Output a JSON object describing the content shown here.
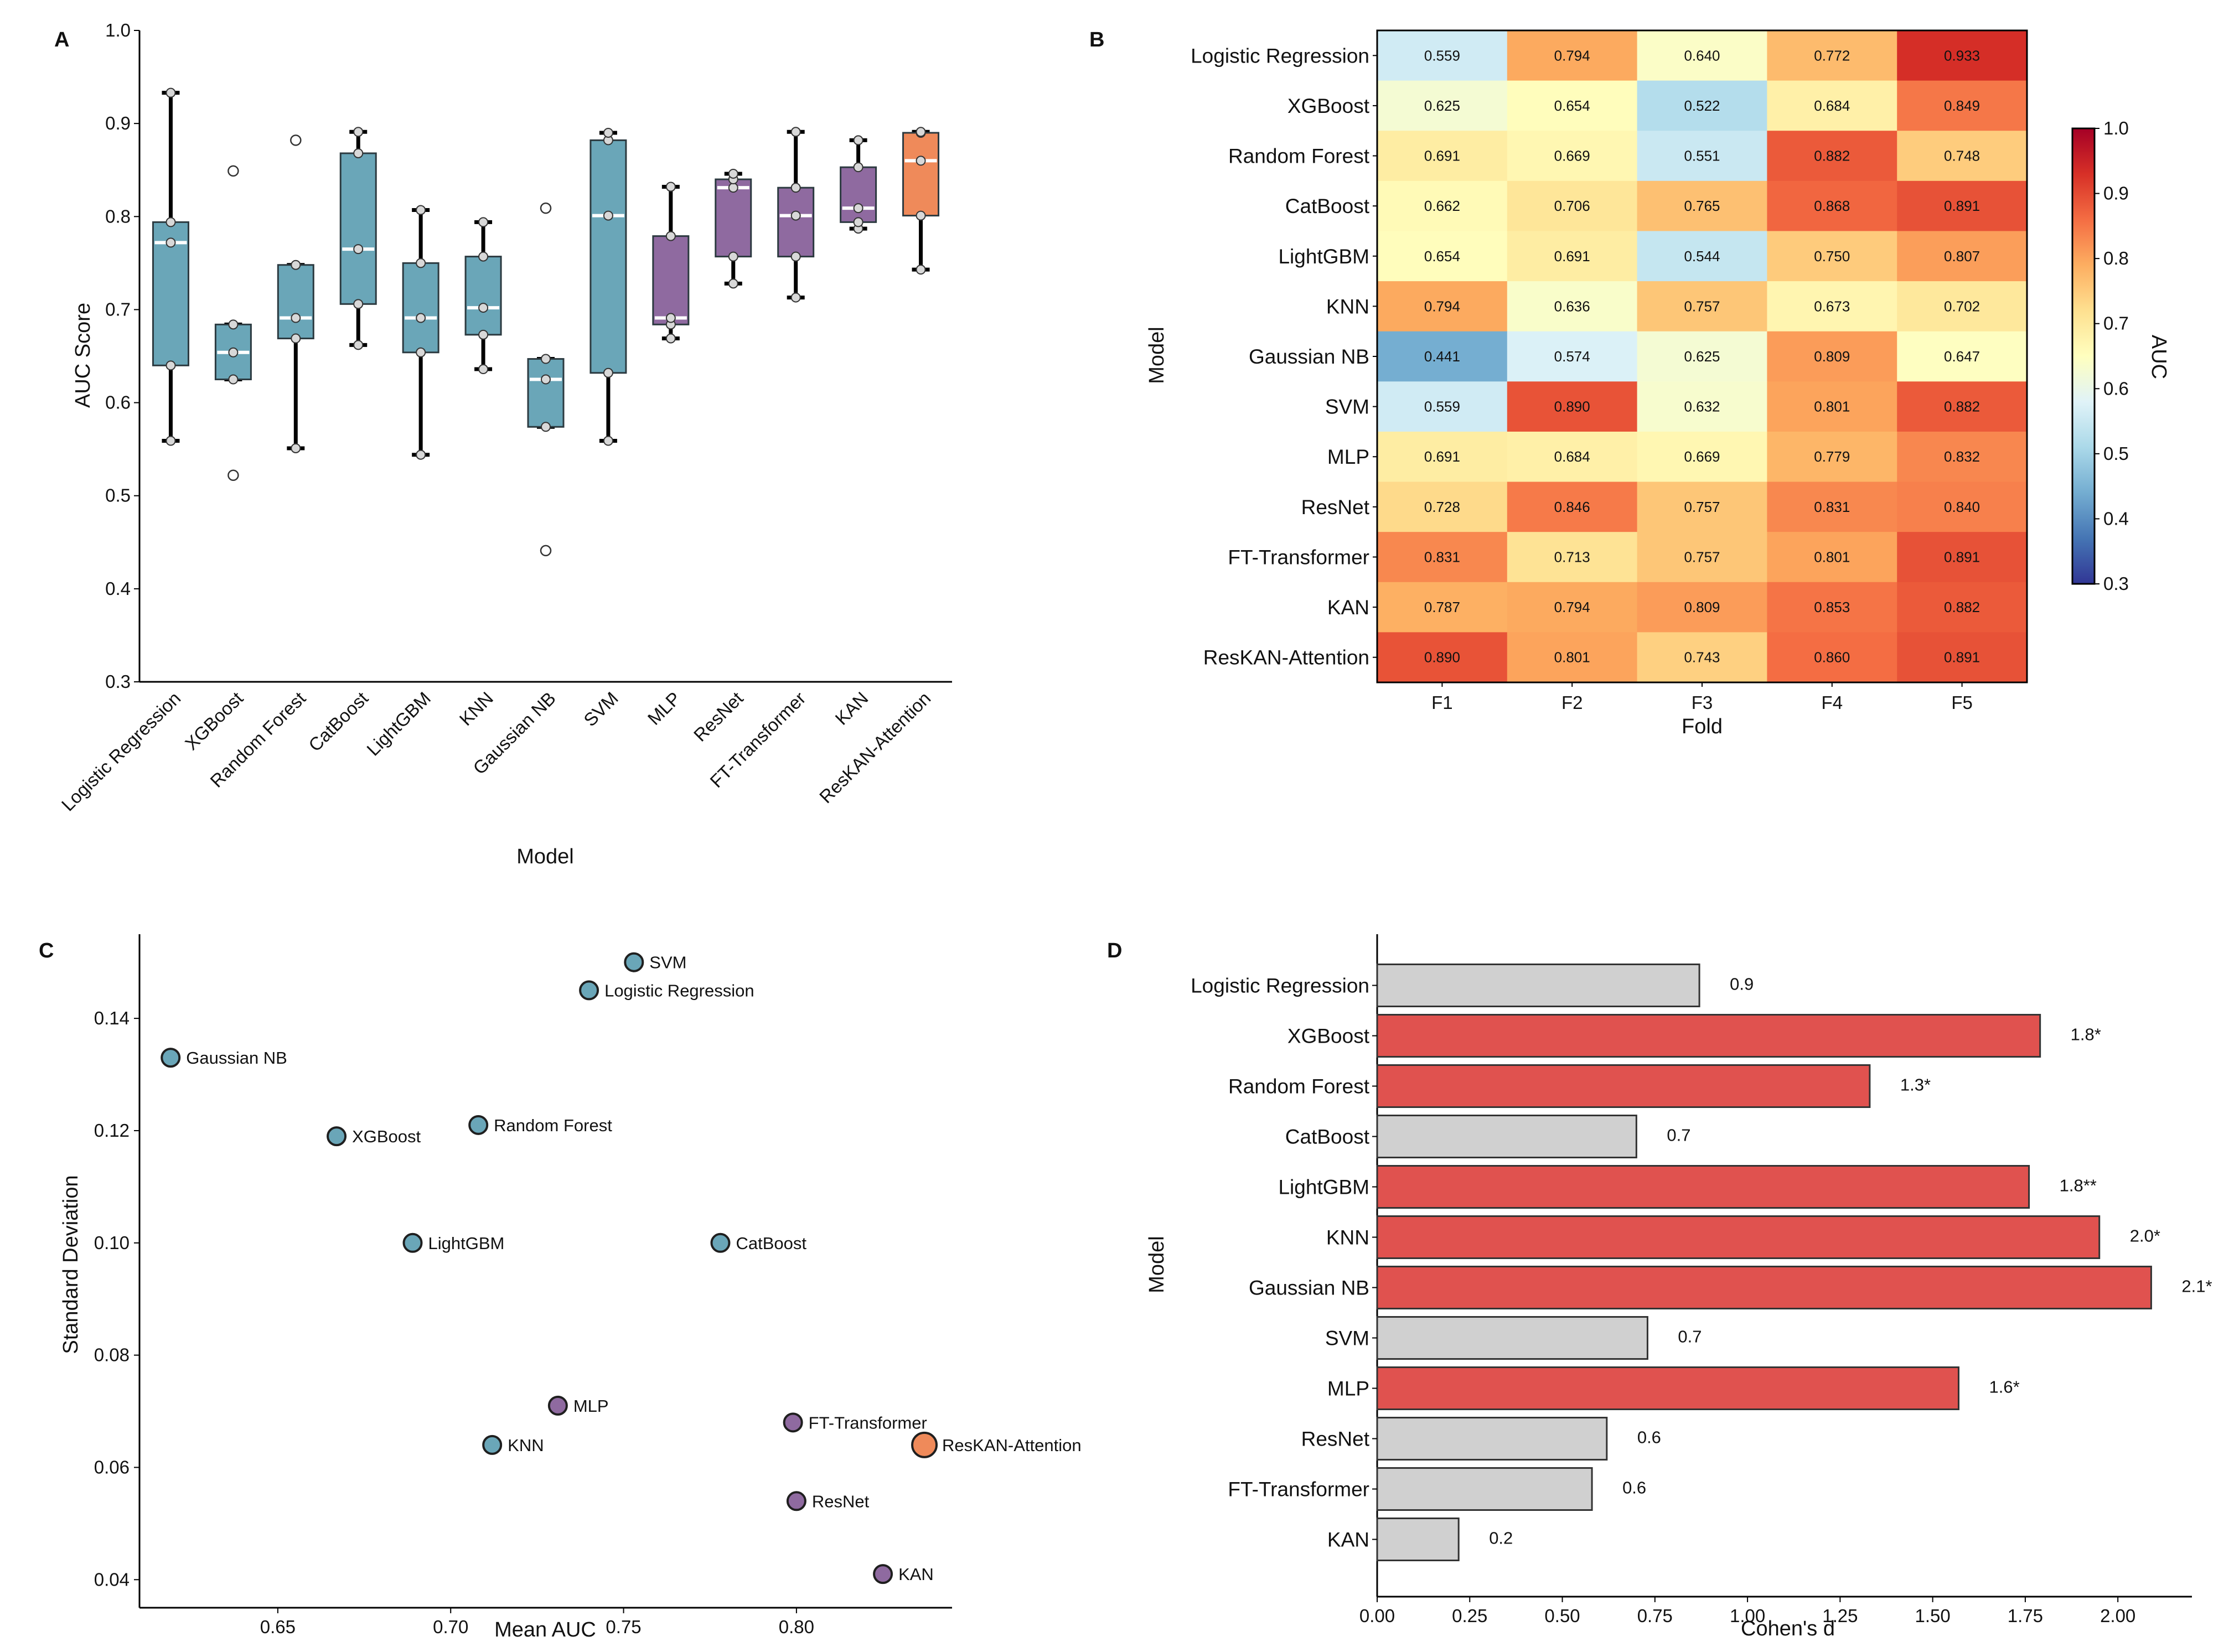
{
  "colors": {
    "blue_box": "#6aa6b8",
    "purple_box": "#8f6aa0",
    "orange_box": "#ef8a5a",
    "red_bar": "#e0524f",
    "grey_bar": "#d0d0d0"
  },
  "chart_data": [
    {
      "panel": "A",
      "type": "box",
      "xlabel": "Model",
      "ylabel": "AUC Score",
      "ylim": [
        0.3,
        1.0
      ],
      "yticks": [
        "0.3",
        "0.4",
        "0.5",
        "0.6",
        "0.7",
        "0.8",
        "0.9",
        "1.0"
      ],
      "series": [
        {
          "name": "Logistic Regression",
          "group": "blue",
          "q1": 0.64,
          "median": 0.772,
          "q3": 0.794,
          "whisker_low": 0.559,
          "whisker_high": 0.933,
          "points": [
            0.559,
            0.64,
            0.772,
            0.794,
            0.933
          ],
          "outliers": []
        },
        {
          "name": "XGBoost",
          "group": "blue",
          "q1": 0.625,
          "median": 0.654,
          "q3": 0.684,
          "whisker_low": 0.625,
          "whisker_high": 0.684,
          "points": [
            0.625,
            0.654,
            0.684
          ],
          "outliers": [
            0.849,
            0.522
          ]
        },
        {
          "name": "Random Forest",
          "group": "blue",
          "q1": 0.669,
          "median": 0.691,
          "q3": 0.748,
          "whisker_low": 0.551,
          "whisker_high": 0.748,
          "points": [
            0.551,
            0.669,
            0.691,
            0.748
          ],
          "outliers": [
            0.882
          ]
        },
        {
          "name": "CatBoost",
          "group": "blue",
          "q1": 0.706,
          "median": 0.765,
          "q3": 0.868,
          "whisker_low": 0.662,
          "whisker_high": 0.891,
          "points": [
            0.662,
            0.706,
            0.765,
            0.868,
            0.891
          ],
          "outliers": []
        },
        {
          "name": "LightGBM",
          "group": "blue",
          "q1": 0.654,
          "median": 0.691,
          "q3": 0.75,
          "whisker_low": 0.544,
          "whisker_high": 0.807,
          "points": [
            0.544,
            0.654,
            0.691,
            0.75,
            0.807
          ],
          "outliers": []
        },
        {
          "name": "KNN",
          "group": "blue",
          "q1": 0.673,
          "median": 0.702,
          "q3": 0.757,
          "whisker_low": 0.636,
          "whisker_high": 0.794,
          "points": [
            0.636,
            0.673,
            0.702,
            0.757,
            0.794
          ],
          "outliers": []
        },
        {
          "name": "Gaussian NB",
          "group": "blue",
          "q1": 0.574,
          "median": 0.625,
          "q3": 0.647,
          "whisker_low": 0.574,
          "whisker_high": 0.647,
          "points": [
            0.574,
            0.625,
            0.647
          ],
          "outliers": [
            0.809,
            0.441
          ]
        },
        {
          "name": "SVM",
          "group": "blue",
          "q1": 0.632,
          "median": 0.801,
          "q3": 0.882,
          "whisker_low": 0.559,
          "whisker_high": 0.89,
          "points": [
            0.559,
            0.632,
            0.801,
            0.882,
            0.89
          ],
          "outliers": []
        },
        {
          "name": "MLP",
          "group": "purple",
          "q1": 0.684,
          "median": 0.691,
          "q3": 0.779,
          "whisker_low": 0.669,
          "whisker_high": 0.832,
          "points": [
            0.669,
            0.684,
            0.691,
            0.779,
            0.832
          ],
          "outliers": []
        },
        {
          "name": "ResNet",
          "group": "purple",
          "q1": 0.757,
          "median": 0.831,
          "q3": 0.84,
          "whisker_low": 0.728,
          "whisker_high": 0.846,
          "points": [
            0.728,
            0.757,
            0.831,
            0.84,
            0.846
          ],
          "outliers": []
        },
        {
          "name": "FT-Transformer",
          "group": "purple",
          "q1": 0.757,
          "median": 0.801,
          "q3": 0.831,
          "whisker_low": 0.713,
          "whisker_high": 0.891,
          "points": [
            0.713,
            0.757,
            0.801,
            0.831,
            0.891
          ],
          "outliers": []
        },
        {
          "name": "KAN",
          "group": "purple",
          "q1": 0.794,
          "median": 0.809,
          "q3": 0.853,
          "whisker_low": 0.787,
          "whisker_high": 0.882,
          "points": [
            0.787,
            0.794,
            0.809,
            0.853,
            0.882
          ],
          "outliers": []
        },
        {
          "name": "ResKAN-Attention",
          "group": "orange",
          "q1": 0.801,
          "median": 0.86,
          "q3": 0.89,
          "whisker_low": 0.743,
          "whisker_high": 0.891,
          "points": [
            0.743,
            0.801,
            0.86,
            0.89,
            0.891
          ],
          "outliers": []
        }
      ]
    },
    {
      "panel": "B",
      "type": "heatmap",
      "xlabel": "Fold",
      "ylabel": "Model",
      "colorbar_label": "AUC",
      "color_range": [
        0.3,
        1.0
      ],
      "colorbar_ticks": [
        "0.3",
        "0.4",
        "0.5",
        "0.6",
        "0.7",
        "0.8",
        "0.9",
        "1.0"
      ],
      "columns": [
        "F1",
        "F2",
        "F3",
        "F4",
        "F5"
      ],
      "rows": [
        "Logistic Regression",
        "XGBoost",
        "Random Forest",
        "CatBoost",
        "LightGBM",
        "KNN",
        "Gaussian NB",
        "SVM",
        "MLP",
        "ResNet",
        "FT-Transformer",
        "KAN",
        "ResKAN-Attention"
      ],
      "values": [
        [
          "0.559",
          "0.794",
          "0.640",
          "0.772",
          "0.933"
        ],
        [
          "0.625",
          "0.654",
          "0.522",
          "0.684",
          "0.849"
        ],
        [
          "0.691",
          "0.669",
          "0.551",
          "0.882",
          "0.748"
        ],
        [
          "0.662",
          "0.706",
          "0.765",
          "0.868",
          "0.891"
        ],
        [
          "0.654",
          "0.691",
          "0.544",
          "0.750",
          "0.807"
        ],
        [
          "0.794",
          "0.636",
          "0.757",
          "0.673",
          "0.702"
        ],
        [
          "0.441",
          "0.574",
          "0.625",
          "0.809",
          "0.647"
        ],
        [
          "0.559",
          "0.890",
          "0.632",
          "0.801",
          "0.882"
        ],
        [
          "0.691",
          "0.684",
          "0.669",
          "0.779",
          "0.832"
        ],
        [
          "0.728",
          "0.846",
          "0.757",
          "0.831",
          "0.840"
        ],
        [
          "0.831",
          "0.713",
          "0.757",
          "0.801",
          "0.891"
        ],
        [
          "0.787",
          "0.794",
          "0.809",
          "0.853",
          "0.882"
        ],
        [
          "0.890",
          "0.801",
          "0.743",
          "0.860",
          "0.891"
        ]
      ]
    },
    {
      "panel": "C",
      "type": "scatter",
      "xlabel": "Mean AUC",
      "ylabel": "Standard Deviation",
      "xlim": [
        0.61,
        0.845
      ],
      "ylim": [
        0.035,
        0.155
      ],
      "xticks": [
        "0.65",
        "0.70",
        "0.75",
        "0.80"
      ],
      "yticks": [
        "0.04",
        "0.06",
        "0.08",
        "0.10",
        "0.12",
        "0.14"
      ],
      "points": [
        {
          "name": "SVM",
          "x": 0.753,
          "y": 0.15,
          "group": "blue"
        },
        {
          "name": "Logistic Regression",
          "x": 0.74,
          "y": 0.145,
          "group": "blue"
        },
        {
          "name": "Gaussian NB",
          "x": 0.619,
          "y": 0.133,
          "group": "blue"
        },
        {
          "name": "Random Forest",
          "x": 0.708,
          "y": 0.121,
          "group": "blue"
        },
        {
          "name": "XGBoost",
          "x": 0.667,
          "y": 0.119,
          "group": "blue"
        },
        {
          "name": "LightGBM",
          "x": 0.689,
          "y": 0.1,
          "group": "blue"
        },
        {
          "name": "CatBoost",
          "x": 0.778,
          "y": 0.1,
          "group": "blue"
        },
        {
          "name": "MLP",
          "x": 0.731,
          "y": 0.071,
          "group": "purple"
        },
        {
          "name": "FT-Transformer",
          "x": 0.799,
          "y": 0.068,
          "group": "purple"
        },
        {
          "name": "ResKAN-Attention",
          "x": 0.837,
          "y": 0.064,
          "group": "orange"
        },
        {
          "name": "KNN",
          "x": 0.712,
          "y": 0.064,
          "group": "blue"
        },
        {
          "name": "ResNet",
          "x": 0.8,
          "y": 0.054,
          "group": "purple"
        },
        {
          "name": "KAN",
          "x": 0.825,
          "y": 0.041,
          "group": "purple"
        }
      ]
    },
    {
      "panel": "D",
      "type": "bar",
      "orientation": "horizontal",
      "xlabel": "Cohen's d",
      "ylabel": "Model",
      "xlim": [
        0,
        2.2
      ],
      "xticks": [
        "0.00",
        "0.25",
        "0.50",
        "0.75",
        "1.00",
        "1.25",
        "1.50",
        "1.75",
        "2.00"
      ],
      "bars": [
        {
          "name": "Logistic Regression",
          "value": 0.87,
          "label": "0.9",
          "significant": false
        },
        {
          "name": "XGBoost",
          "value": 1.79,
          "label": "1.8*",
          "significant": true
        },
        {
          "name": "Random Forest",
          "value": 1.33,
          "label": "1.3*",
          "significant": true
        },
        {
          "name": "CatBoost",
          "value": 0.7,
          "label": "0.7",
          "significant": false
        },
        {
          "name": "LightGBM",
          "value": 1.76,
          "label": "1.8**",
          "significant": true
        },
        {
          "name": "KNN",
          "value": 1.95,
          "label": "2.0*",
          "significant": true
        },
        {
          "name": "Gaussian NB",
          "value": 2.09,
          "label": "2.1*",
          "significant": true
        },
        {
          "name": "SVM",
          "value": 0.73,
          "label": "0.7",
          "significant": false
        },
        {
          "name": "MLP",
          "value": 1.57,
          "label": "1.6*",
          "significant": true
        },
        {
          "name": "ResNet",
          "value": 0.62,
          "label": "0.6",
          "significant": false
        },
        {
          "name": "FT-Transformer",
          "value": 0.58,
          "label": "0.6",
          "significant": false
        },
        {
          "name": "KAN",
          "value": 0.22,
          "label": "0.2",
          "significant": false
        }
      ]
    }
  ]
}
